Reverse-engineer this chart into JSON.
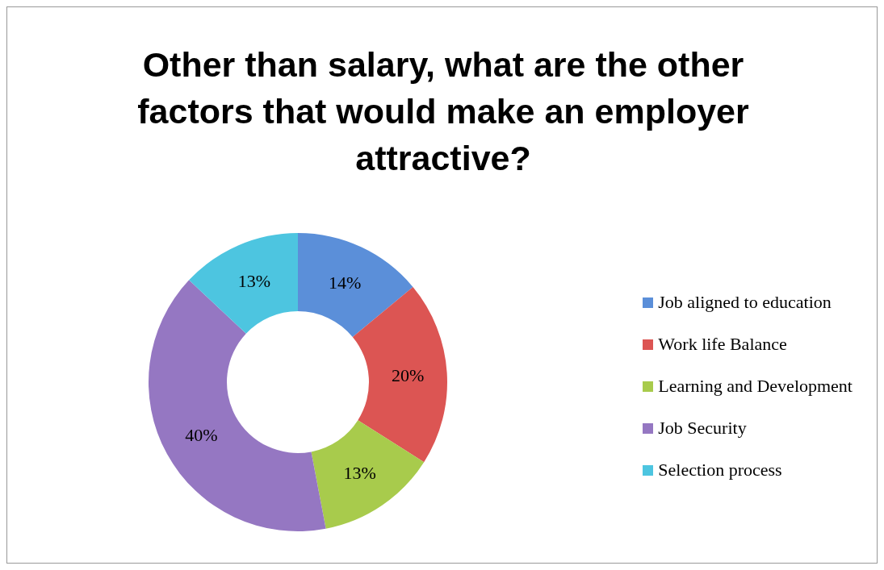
{
  "chart_data": {
    "type": "donut",
    "title": "Other than salary, what are the other factors that would make an employer attractive?",
    "categories": [
      "Job aligned to education",
      "Work life Balance",
      "Learning and Development",
      "Job Security",
      "Selection process"
    ],
    "values": [
      14,
      20,
      13,
      40,
      13
    ],
    "value_labels": [
      "14%",
      "20%",
      "13%",
      "40%",
      "13%"
    ],
    "colors": [
      "#5b8fd9",
      "#dc5553",
      "#a8cb4c",
      "#9577c2",
      "#4dc5e0"
    ],
    "legend": "right"
  }
}
